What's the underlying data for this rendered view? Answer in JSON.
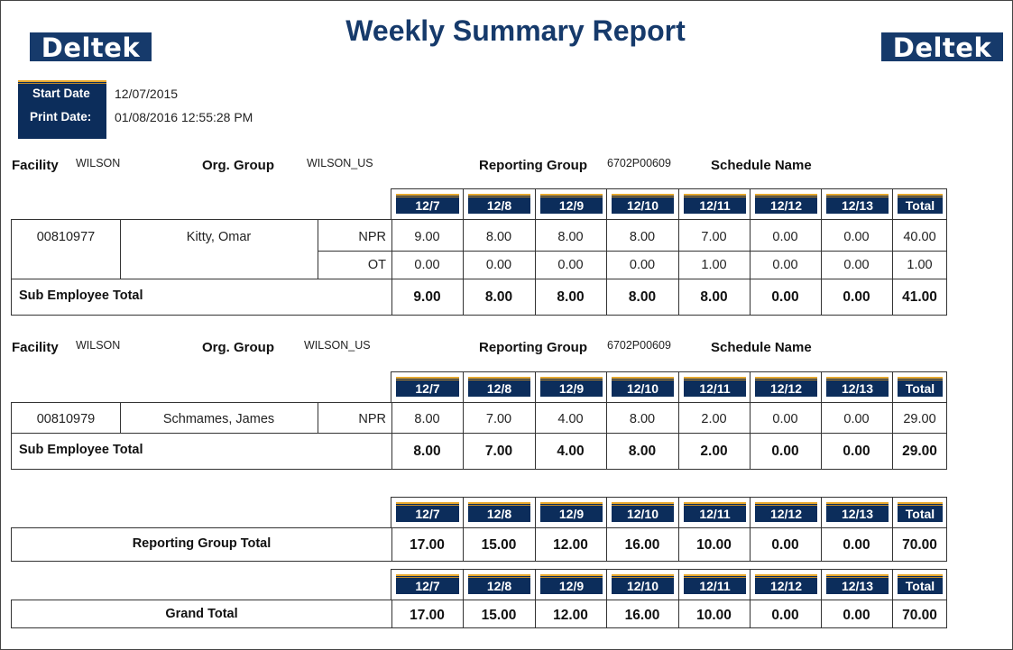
{
  "report": {
    "title": "Weekly Summary Report",
    "logo_text": "Deltek",
    "start_date_label": "Start Date",
    "start_date": "12/07/2015",
    "print_date_label": "Print Date:",
    "print_date": "01/08/2016 12:55:28 PM"
  },
  "labels": {
    "facility": "Facility",
    "org_group": "Org. Group",
    "reporting_group": "Reporting Group",
    "schedule_name": "Schedule Name",
    "sub_employee_total": "Sub Employee Total",
    "reporting_group_total": "Reporting Group Total",
    "grand_total": "Grand Total"
  },
  "columns": [
    "12/7",
    "12/8",
    "12/9",
    "12/10",
    "12/11",
    "12/12",
    "12/13",
    "Total"
  ],
  "sections": [
    {
      "facility": "WILSON",
      "org_group": "WILSON_US",
      "reporting_group": "6702P00609",
      "schedule_name": "",
      "employee": {
        "id": "00810977",
        "name": "Kitty, Omar",
        "rows": [
          {
            "type": "NPR",
            "values": [
              "9.00",
              "8.00",
              "8.00",
              "8.00",
              "7.00",
              "0.00",
              "0.00",
              "40.00"
            ]
          },
          {
            "type": "OT",
            "values": [
              "0.00",
              "0.00",
              "0.00",
              "0.00",
              "1.00",
              "0.00",
              "0.00",
              "1.00"
            ]
          }
        ]
      },
      "sub_total": [
        "9.00",
        "8.00",
        "8.00",
        "8.00",
        "8.00",
        "0.00",
        "0.00",
        "41.00"
      ]
    },
    {
      "facility": "WILSON",
      "org_group": "WILSON_US",
      "reporting_group": "6702P00609",
      "schedule_name": "",
      "employee": {
        "id": "00810979",
        "name": "Schmames, James",
        "rows": [
          {
            "type": "NPR",
            "values": [
              "8.00",
              "7.00",
              "4.00",
              "8.00",
              "2.00",
              "0.00",
              "0.00",
              "29.00"
            ]
          }
        ]
      },
      "sub_total": [
        "8.00",
        "7.00",
        "4.00",
        "8.00",
        "2.00",
        "0.00",
        "0.00",
        "29.00"
      ]
    }
  ],
  "reporting_group_total": [
    "17.00",
    "15.00",
    "12.00",
    "16.00",
    "10.00",
    "0.00",
    "0.00",
    "70.00"
  ],
  "grand_total": [
    "17.00",
    "15.00",
    "12.00",
    "16.00",
    "10.00",
    "0.00",
    "0.00",
    "70.00"
  ],
  "colors": {
    "navy": "#0c2d5b",
    "logo": "#163a6b",
    "stripe": "#e8a92e"
  }
}
